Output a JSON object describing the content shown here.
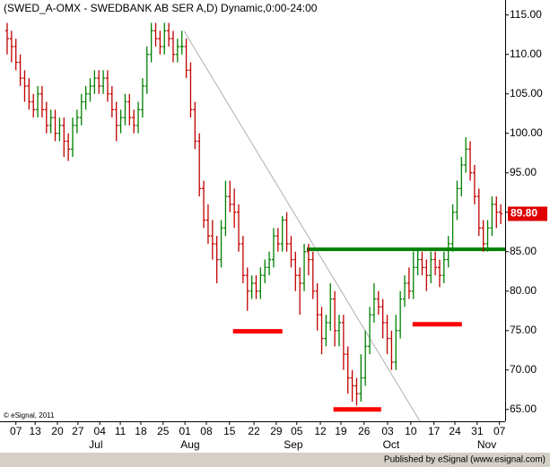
{
  "chart_data": {
    "type": "ohlc",
    "title": "(SWED_A-OMX - SWEDBANK AB SER A,D) Dynamic,0:00-24:00",
    "copyright": "© eSignal, 2011",
    "publisher": "Published by eSignal (www.esignal.com)",
    "up_color": "#008000",
    "down_color": "#c00000",
    "last_price": {
      "value": 89.8,
      "label": "89.80"
    },
    "last_price_color": "#e00000",
    "xlim": [
      -1.64,
      114
    ],
    "ylim": [
      63.5,
      116.9
    ],
    "yticks": [
      {
        "value": 115,
        "label": "115.00"
      },
      {
        "value": 110,
        "label": "110.00"
      },
      {
        "value": 105,
        "label": "105.00"
      },
      {
        "value": 100,
        "label": "100.00"
      },
      {
        "value": 95,
        "label": "95.00"
      },
      {
        "value": 90,
        "label": "90.00"
      },
      {
        "value": 85,
        "label": "85.00"
      },
      {
        "value": 80,
        "label": "80.00"
      },
      {
        "value": 75,
        "label": "75.00"
      },
      {
        "value": 70,
        "label": "70.00"
      },
      {
        "value": 65,
        "label": "65.00"
      }
    ],
    "xticks": [
      {
        "value": 2,
        "label": "07"
      },
      {
        "value": 6.4,
        "label": "13"
      },
      {
        "value": 11.5,
        "label": "20"
      },
      {
        "value": 16.2,
        "label": "27"
      },
      {
        "value": 21.2,
        "label": "04"
      },
      {
        "value": 25.9,
        "label": "11"
      },
      {
        "value": 30.6,
        "label": "18"
      },
      {
        "value": 35.7,
        "label": "25"
      },
      {
        "value": 40.7,
        "label": "01"
      },
      {
        "value": 45.6,
        "label": "08"
      },
      {
        "value": 50.9,
        "label": "15"
      },
      {
        "value": 56.5,
        "label": "22"
      },
      {
        "value": 61.6,
        "label": "29"
      },
      {
        "value": 66.3,
        "label": "05"
      },
      {
        "value": 71.7,
        "label": "12"
      },
      {
        "value": 76.4,
        "label": "19"
      },
      {
        "value": 81.7,
        "label": "26"
      },
      {
        "value": 87.1,
        "label": "03"
      },
      {
        "value": 92.4,
        "label": "10"
      },
      {
        "value": 97.7,
        "label": "17"
      },
      {
        "value": 102.5,
        "label": "24"
      },
      {
        "value": 107.6,
        "label": "31"
      },
      {
        "value": 112.7,
        "label": "07"
      }
    ],
    "month_labels": [
      {
        "value": 20.3,
        "label": "Jul"
      },
      {
        "value": 41.9,
        "label": "Aug"
      },
      {
        "value": 65.5,
        "label": "Sep"
      },
      {
        "value": 87.9,
        "label": "Oct"
      },
      {
        "value": 109.8,
        "label": "Nov"
      }
    ],
    "values": [
      [
        113,
        114,
        110,
        112
      ],
      [
        112,
        113,
        109,
        111
      ],
      [
        111,
        112,
        108,
        109
      ],
      [
        109,
        110,
        106,
        107
      ],
      [
        107,
        108,
        104,
        106
      ],
      [
        106,
        107,
        103,
        104
      ],
      [
        104,
        105,
        102,
        103
      ],
      [
        103,
        106,
        102,
        105
      ],
      [
        105,
        106,
        102,
        103
      ],
      [
        103,
        104,
        100,
        101
      ],
      [
        101,
        103,
        100,
        102
      ],
      [
        102,
        103,
        99,
        100
      ],
      [
        100,
        102,
        99,
        101
      ],
      [
        101,
        102,
        97,
        99
      ],
      [
        99,
        100,
        96.5,
        98
      ],
      [
        98,
        102,
        97,
        101
      ],
      [
        101,
        103,
        100,
        102
      ],
      [
        102,
        105,
        101,
        104
      ],
      [
        104,
        106,
        103,
        105
      ],
      [
        105,
        107,
        104,
        106
      ],
      [
        106,
        108,
        105,
        107
      ],
      [
        107,
        108,
        105,
        106
      ],
      [
        106,
        108,
        105,
        107
      ],
      [
        107,
        108,
        104,
        105
      ],
      [
        105,
        106,
        102,
        103
      ],
      [
        103,
        104,
        99,
        101
      ],
      [
        101,
        103,
        100,
        102
      ],
      [
        102,
        105,
        101,
        104
      ],
      [
        104,
        105,
        101,
        102
      ],
      [
        102,
        103,
        100,
        101
      ],
      [
        101,
        104,
        100,
        103
      ],
      [
        103,
        107,
        102,
        106
      ],
      [
        106,
        111,
        105,
        110
      ],
      [
        110,
        114,
        109,
        113
      ],
      [
        113,
        114,
        111,
        112
      ],
      [
        112,
        113,
        110,
        111
      ],
      [
        111,
        114,
        110,
        113
      ],
      [
        113,
        114,
        111,
        112
      ],
      [
        112,
        113,
        109,
        110
      ],
      [
        110,
        112,
        109,
        111
      ],
      [
        111,
        113,
        110,
        111
      ],
      [
        111,
        112,
        107,
        108
      ],
      [
        108,
        109,
        102,
        103
      ],
      [
        103,
        104,
        98,
        99
      ],
      [
        99,
        100,
        92,
        93
      ],
      [
        93,
        94,
        88,
        89
      ],
      [
        89,
        91,
        86,
        87
      ],
      [
        87,
        89,
        84,
        86
      ],
      [
        86,
        87,
        81,
        84
      ],
      [
        84,
        89,
        83,
        88
      ],
      [
        88,
        94,
        87,
        92
      ],
      [
        92,
        94,
        90,
        91
      ],
      [
        91,
        93,
        88,
        90
      ],
      [
        90,
        91,
        85,
        86
      ],
      [
        86,
        87,
        81,
        82
      ],
      [
        82,
        83,
        77.5,
        80
      ],
      [
        80,
        82,
        79,
        81
      ],
      [
        81,
        82,
        79,
        80
      ],
      [
        80,
        83,
        79,
        82
      ],
      [
        82,
        84,
        81,
        83
      ],
      [
        83,
        85,
        82,
        84
      ],
      [
        84,
        88,
        83,
        87
      ],
      [
        87,
        88,
        85,
        86
      ],
      [
        86,
        89.5,
        85,
        89
      ],
      [
        89,
        90,
        85,
        86
      ],
      [
        86,
        87,
        83,
        84
      ],
      [
        84,
        85,
        80,
        82
      ],
      [
        82,
        83,
        77,
        81
      ],
      [
        81,
        86,
        80,
        85
      ],
      [
        85,
        86,
        82,
        84
      ],
      [
        84,
        85,
        79,
        80
      ],
      [
        80,
        81,
        75,
        77
      ],
      [
        77,
        78,
        72,
        74
      ],
      [
        74,
        77,
        73,
        76
      ],
      [
        76,
        81,
        75,
        79
      ],
      [
        79,
        80,
        73,
        75
      ],
      [
        75,
        77,
        73,
        76
      ],
      [
        76,
        77,
        70,
        72
      ],
      [
        72,
        73,
        67,
        69
      ],
      [
        69,
        70,
        66,
        68
      ],
      [
        68,
        69,
        65.5,
        67
      ],
      [
        67,
        72,
        66,
        69
      ],
      [
        69,
        75,
        68,
        73
      ],
      [
        73,
        78,
        72,
        77
      ],
      [
        77,
        81,
        76,
        79
      ],
      [
        79,
        80,
        77,
        78
      ],
      [
        78,
        79,
        74,
        76
      ],
      [
        76,
        77,
        72,
        74
      ],
      [
        74,
        75,
        70,
        71
      ],
      [
        71,
        77,
        70,
        75
      ],
      [
        75,
        80,
        74,
        79
      ],
      [
        79,
        82,
        78,
        81
      ],
      [
        81,
        83,
        79,
        80
      ],
      [
        80,
        85,
        79,
        83
      ],
      [
        83,
        85.5,
        82,
        84
      ],
      [
        84,
        85,
        82,
        83
      ],
      [
        83,
        84,
        80,
        82
      ],
      [
        82,
        85,
        81,
        84
      ],
      [
        84,
        85,
        82,
        83
      ],
      [
        83,
        84,
        80.5,
        82
      ],
      [
        82,
        85,
        81,
        84
      ],
      [
        84,
        87,
        83,
        86
      ],
      [
        86,
        91,
        85,
        90
      ],
      [
        90,
        94,
        89,
        93
      ],
      [
        93,
        97,
        92,
        96
      ],
      [
        96,
        99.5,
        95,
        98
      ],
      [
        98,
        99,
        94,
        95
      ],
      [
        95,
        96,
        91,
        92
      ],
      [
        92,
        93,
        87,
        88
      ],
      [
        88,
        89,
        85,
        86
      ],
      [
        86,
        89,
        85,
        88
      ],
      [
        88,
        92,
        87,
        91
      ],
      [
        91,
        92,
        88,
        90
      ],
      [
        90,
        91,
        88.5,
        89.8
      ]
    ],
    "lines": [
      {
        "x": [
          40.5,
          94.5
        ],
        "y": [
          112.95,
          63.5
        ],
        "color": "#b0b0b0",
        "width": 1
      },
      {
        "x": [
          68.6,
          114
        ],
        "y": [
          85.3,
          85.3
        ],
        "color": "#008000",
        "width": 4
      },
      {
        "x": [
          51.7,
          63
        ],
        "y": [
          74.9,
          74.9
        ],
        "color": "#ff0000",
        "width": 5
      },
      {
        "x": [
          74.7,
          85.6
        ],
        "y": [
          65,
          65
        ],
        "color": "#ff0000",
        "width": 5
      },
      {
        "x": [
          92.8,
          104.1
        ],
        "y": [
          75.8,
          75.8
        ],
        "color": "#ff0000",
        "width": 5
      }
    ]
  }
}
